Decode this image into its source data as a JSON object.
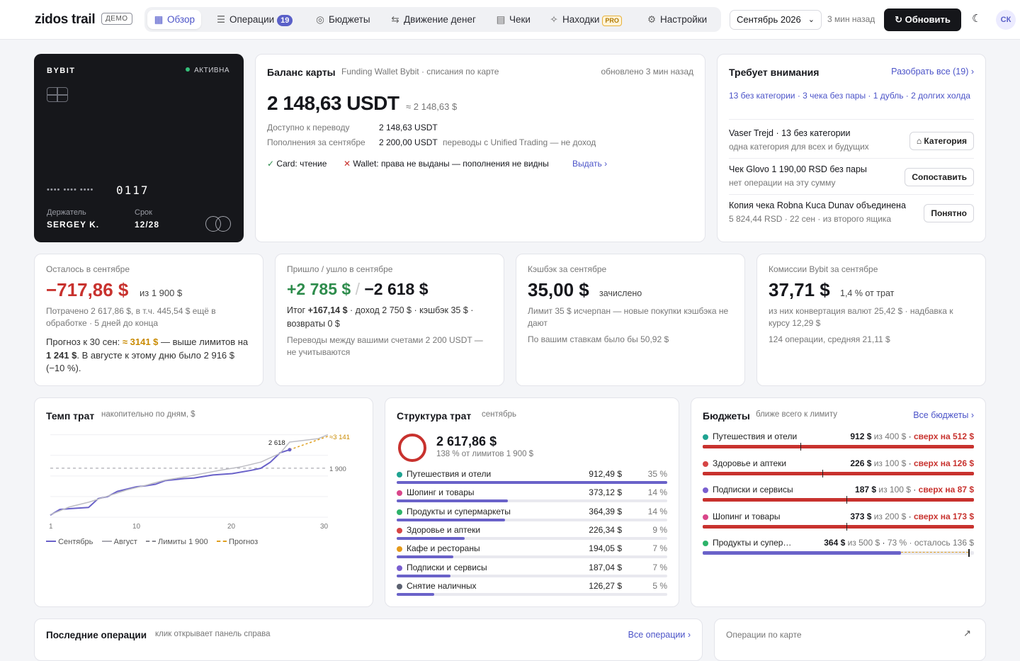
{
  "app": {
    "logo": "zidos trail",
    "badge": "ДЕМО"
  },
  "nav": [
    {
      "label": "Обзор",
      "icon": "grid-icon",
      "glyph": "▦",
      "active": true
    },
    {
      "label": "Операции",
      "icon": "list-icon",
      "glyph": "☰",
      "count": "19"
    },
    {
      "label": "Бюджеты",
      "icon": "target-icon",
      "glyph": "◎"
    },
    {
      "label": "Движение денег",
      "icon": "transfer-icon",
      "glyph": "⇆"
    },
    {
      "label": "Чеки",
      "icon": "receipt-icon",
      "glyph": "▤"
    },
    {
      "label": "Находки",
      "icon": "sparkle-icon",
      "glyph": "✧",
      "pro": "PRO"
    },
    {
      "label": "Настройки",
      "icon": "sliders-icon",
      "glyph": "⚙"
    }
  ],
  "header": {
    "month": "Сентябрь 2026",
    "updated": "3 мин назад",
    "refresh": "Обновить",
    "avatar": "СК"
  },
  "card": {
    "brand": "BYBIT",
    "status": "АКТИВНА",
    "mask": "•••• •••• ••••",
    "last4": "0117",
    "holder_label": "Держатель",
    "holder": "SERGEY K.",
    "exp_label": "Срок",
    "exp": "12/28"
  },
  "balance": {
    "title": "Баланс карты",
    "subtitle": "Funding Wallet Bybit · списания по карте",
    "updated": "обновлено 3 мин назад",
    "amount": "2 148,63 USDT",
    "approx": "≈ 2 148,63 $",
    "rows": [
      {
        "label": "Доступно к переводу",
        "value": "2 148,63 USDT",
        "note": ""
      },
      {
        "label": "Пополнения за сентябре",
        "value": "2 200,00 USDT",
        "note": "переводы с Unified Trading — не доход"
      }
    ],
    "perm_ok": "Card: чтение",
    "perm_bad": "Wallet: права не выданы — пополнения не видны",
    "perm_link": "Выдать ›"
  },
  "attention": {
    "title": "Требует внимания",
    "link": "Разобрать все (19) ›",
    "summary": "13 без категории · 3 чека без пары · 1 дубль · 2 долгих холда",
    "items": [
      {
        "title": "Vaser Trejd · 13 без категории",
        "sub": "одна категория для всех и будущих",
        "button": "Категория"
      },
      {
        "title": "Чек Glovo 1 190,00 RSD без пары",
        "sub": "нет операции на эту сумму",
        "button": "Сопоставить"
      },
      {
        "title": "Копия чека Robna Kuca Dunav объединена",
        "sub": "5 824,44 RSD · 22 сен · из второго ящика",
        "button": "Понятно"
      }
    ]
  },
  "kpi": {
    "left": {
      "label": "Осталось в сентябре",
      "value": "−717,86 $",
      "of": "из 1 900 $",
      "line1": "Потрачено 2 617,86 $, в т.ч. 445,54 $ ещё в обработке · 5 дней до конца",
      "f1": "Прогноз к 30 сен: ",
      "f2": "≈ 3141 $",
      "f3": " — выше лимитов на ",
      "f4": "1 241 $",
      "f5": ". В августе к этому дню было 2 916 $ (−10 %)."
    },
    "flow": {
      "label": "Пришло / ушло в сентябре",
      "in": "+2 785 $",
      "slash": "/",
      "out": "−2 618 $",
      "t1": "Итог ",
      "t2": "+167,14 $",
      "t3": " · доход 2 750 $ · кэшбэк 35 $ · возвраты 0 $",
      "note": "Переводы между вашими счетами 2 200 USDT — не учитываются"
    },
    "cash": {
      "label": "Кэшбэк за сентябре",
      "value": "35,00 $",
      "suffix": "зачислено",
      "line1": "Лимит 35 $ исчерпан — новые покупки кэшбэка не дают",
      "line2": "По вашим ставкам было бы 50,92 $"
    },
    "fee": {
      "label": "Комиссии Bybit за сентябре",
      "value": "37,71 $",
      "suffix": "1,4 % от трат",
      "line1": "из них конвертация валют 25,42 $ · надбавка к курсу 12,29 $",
      "line2": "124 операции, средняя 21,11 $"
    }
  },
  "pace": {
    "title": "Темп трат",
    "subtitle": "накопительно по дням, $",
    "chart_data": {
      "type": "line",
      "xlim": [
        1,
        30
      ],
      "ylim": [
        0,
        3300
      ],
      "x_ticks": [
        "1",
        "10",
        "20",
        "30"
      ],
      "limit": 1900,
      "limit_label": "1 900",
      "current_label": "2 618",
      "forecast_label": "≈3 141",
      "series": [
        {
          "name": "Сентябрь",
          "color": "#6a62c9",
          "points": [
            [
              1,
              80
            ],
            [
              2,
              300
            ],
            [
              3,
              330
            ],
            [
              5,
              380
            ],
            [
              6,
              720
            ],
            [
              7,
              800
            ],
            [
              8,
              1000
            ],
            [
              10,
              1180
            ],
            [
              11,
              1220
            ],
            [
              12,
              1280
            ],
            [
              13,
              1420
            ],
            [
              15,
              1500
            ],
            [
              16,
              1520
            ],
            [
              18,
              1640
            ],
            [
              20,
              1690
            ],
            [
              22,
              1820
            ],
            [
              23,
              1900
            ],
            [
              24,
              2140
            ],
            [
              25,
              2500
            ],
            [
              26,
              2618
            ]
          ]
        },
        {
          "name": "Август",
          "color": "#bdbdc4",
          "points": [
            [
              1,
              100
            ],
            [
              3,
              400
            ],
            [
              5,
              580
            ],
            [
              7,
              820
            ],
            [
              9,
              1060
            ],
            [
              11,
              1240
            ],
            [
              13,
              1440
            ],
            [
              15,
              1560
            ],
            [
              17,
              1700
            ],
            [
              19,
              1840
            ],
            [
              21,
              1960
            ],
            [
              23,
              2140
            ],
            [
              25,
              2480
            ],
            [
              26,
              2916
            ],
            [
              27,
              2960
            ],
            [
              29,
              3050
            ],
            [
              30,
              3200
            ]
          ]
        },
        {
          "name": "Прогноз",
          "color": "#e0a020",
          "dashed": true,
          "points": [
            [
              26,
              2618
            ],
            [
              30,
              3141
            ]
          ]
        }
      ]
    },
    "legend": [
      {
        "label": "Сентябрь",
        "color": "#6a62c9",
        "style": "solid"
      },
      {
        "label": "Август",
        "color": "#aaaab2",
        "style": "solid"
      },
      {
        "label": "Лимиты 1 900",
        "color": "#8a8a92",
        "style": "dashed"
      },
      {
        "label": "Прогноз",
        "color": "#e0a020",
        "style": "dashed"
      }
    ]
  },
  "structure": {
    "title": "Структура трат",
    "subtitle": "сентябрь",
    "total": "2 617,86 $",
    "total_sub": "138 % от лимитов 1 900 $",
    "items": [
      {
        "name": "Путешествия и отели",
        "amount": "912,49 $",
        "pct": "35 %",
        "share": 1.0,
        "color": "#1fa391"
      },
      {
        "name": "Шопинг и товары",
        "amount": "373,12 $",
        "pct": "14 %",
        "share": 0.41,
        "color": "#d9468a"
      },
      {
        "name": "Продукты и супермаркеты",
        "amount": "364,39 $",
        "pct": "14 %",
        "share": 0.4,
        "color": "#2db36a"
      },
      {
        "name": "Здоровье и аптеки",
        "amount": "226,34 $",
        "pct": "9 %",
        "share": 0.25,
        "color": "#d64545"
      },
      {
        "name": "Кафе и рестораны",
        "amount": "194,05 $",
        "pct": "7 %",
        "share": 0.21,
        "color": "#e59a1a"
      },
      {
        "name": "Подписки и сервисы",
        "amount": "187,04 $",
        "pct": "7 %",
        "share": 0.2,
        "color": "#7a5fd0"
      },
      {
        "name": "Снятие наличных",
        "amount": "126,27 $",
        "pct": "5 %",
        "share": 0.14,
        "color": "#5b6170"
      }
    ]
  },
  "budgets": {
    "title": "Бюджеты",
    "subtitle": "ближе всего к лимиту",
    "link": "Все бюджеты ›",
    "items": [
      {
        "name": "Путешествия и отели",
        "spent": "912 $",
        "limit": "из 400 $",
        "note": "сверх на 512 $",
        "over": true,
        "fill": 1.0,
        "mark": 0.36,
        "color": "#1fa391"
      },
      {
        "name": "Здоровье и аптеки",
        "spent": "226 $",
        "limit": "из 100 $",
        "note": "сверх на 126 $",
        "over": true,
        "fill": 1.0,
        "mark": 0.44,
        "color": "#d64545"
      },
      {
        "name": "Подписки и сервисы",
        "spent": "187 $",
        "limit": "из 100 $",
        "note": "сверх на 87 $",
        "over": true,
        "fill": 1.0,
        "mark": 0.53,
        "color": "#7a5fd0"
      },
      {
        "name": "Шопинг и товары",
        "spent": "373 $",
        "limit": "из 200 $",
        "note": "сверх на 173 $",
        "over": true,
        "fill": 1.0,
        "mark": 0.53,
        "color": "#d9468a"
      },
      {
        "name": "Продукты и супер…",
        "spent": "364 $",
        "limit": "из 500 $",
        "note": "73 % · осталось 136 $",
        "over": false,
        "fill": 0.73,
        "mark": 0.98,
        "color": "#2db36a"
      }
    ]
  },
  "bottom": {
    "recent_title": "Последние операции",
    "recent_sub": "клик открывает панель справа",
    "recent_link": "Все операции ›",
    "card_ops": "Операции по карте"
  }
}
